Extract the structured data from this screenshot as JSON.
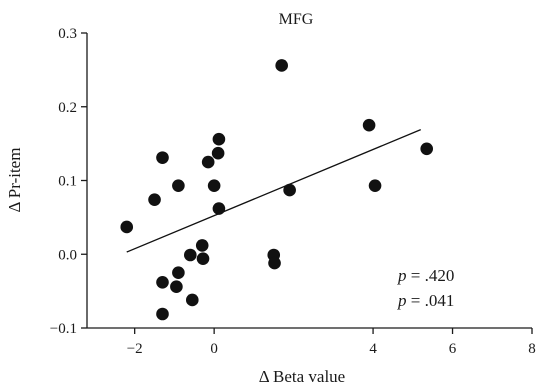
{
  "chart_data": {
    "type": "scatter",
    "title": "MFG",
    "xlabel": "Δ Beta value",
    "ylabel": "Δ Pr-item",
    "xlim": [
      -3.2,
      8
    ],
    "ylim": [
      -0.1,
      0.3
    ],
    "xticks": [
      -2,
      0,
      4,
      6,
      8
    ],
    "yticks": [
      -0.1,
      0.0,
      0.1,
      0.2,
      0.3
    ],
    "xtick_labels": [
      "−2",
      "0",
      "4",
      "6",
      "8"
    ],
    "ytick_labels": [
      "−0.1",
      "0.0",
      "0.1",
      "0.2",
      "0.3"
    ],
    "grid": false,
    "point_color": "#111111",
    "points": [
      {
        "x": -2.2,
        "y": 0.037
      },
      {
        "x": -1.5,
        "y": 0.074
      },
      {
        "x": -1.3,
        "y": 0.131
      },
      {
        "x": -1.3,
        "y": -0.038
      },
      {
        "x": -1.3,
        "y": -0.081
      },
      {
        "x": -0.9,
        "y": 0.093
      },
      {
        "x": -0.9,
        "y": -0.025
      },
      {
        "x": -0.95,
        "y": -0.044
      },
      {
        "x": -0.6,
        "y": -0.001
      },
      {
        "x": -0.55,
        "y": -0.062
      },
      {
        "x": -0.3,
        "y": 0.012
      },
      {
        "x": -0.28,
        "y": -0.006
      },
      {
        "x": -0.15,
        "y": 0.125
      },
      {
        "x": 0.0,
        "y": 0.093
      },
      {
        "x": 0.1,
        "y": 0.137
      },
      {
        "x": 0.12,
        "y": 0.156
      },
      {
        "x": 0.12,
        "y": 0.062
      },
      {
        "x": 1.5,
        "y": -0.001
      },
      {
        "x": 1.52,
        "y": -0.012
      },
      {
        "x": 1.7,
        "y": 0.256
      },
      {
        "x": 1.9,
        "y": 0.087
      },
      {
        "x": 3.9,
        "y": 0.175
      },
      {
        "x": 4.05,
        "y": 0.093
      },
      {
        "x": 5.35,
        "y": 0.143
      }
    ],
    "trendline": {
      "x": [
        -2.2,
        5.2
      ],
      "y": [
        0.003,
        0.169
      ]
    },
    "annotations": [
      {
        "var": "p",
        "text": " = .420"
      },
      {
        "var": "p",
        "text": " = .041"
      }
    ]
  }
}
